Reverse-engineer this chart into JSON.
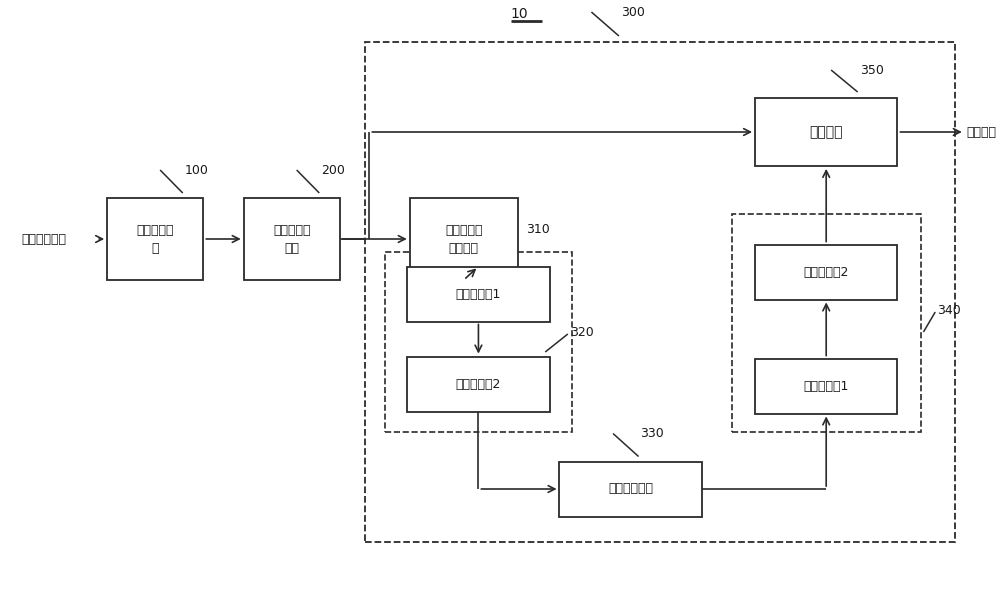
{
  "bg_color": "#ffffff",
  "text_color": "#1a1a1a",
  "box_edge": "#2a2a2a",
  "arrow_color": "#2a2a2a",
  "dashed_color": "#2a2a2a",
  "text_source": "原始噪声图像",
  "text_ch_sep": "通道分离模\n块",
  "text_ch_denoise": "通道内去噪\n网络",
  "text_ch_attention": "第一通道注\n意力模块",
  "text_down1": "下采样单元1",
  "text_down2": "下采样单元2",
  "text_conv": "卷积运算单元",
  "text_up1": "上采样单元1",
  "text_up2": "上采样单元2",
  "text_output": "输出模块",
  "text_clean": "干净图像",
  "label_10": "10",
  "label_100": "100",
  "label_200": "200",
  "label_300": "300",
  "label_310": "310",
  "label_320": "320",
  "label_330": "330",
  "label_340": "340",
  "label_350": "350"
}
